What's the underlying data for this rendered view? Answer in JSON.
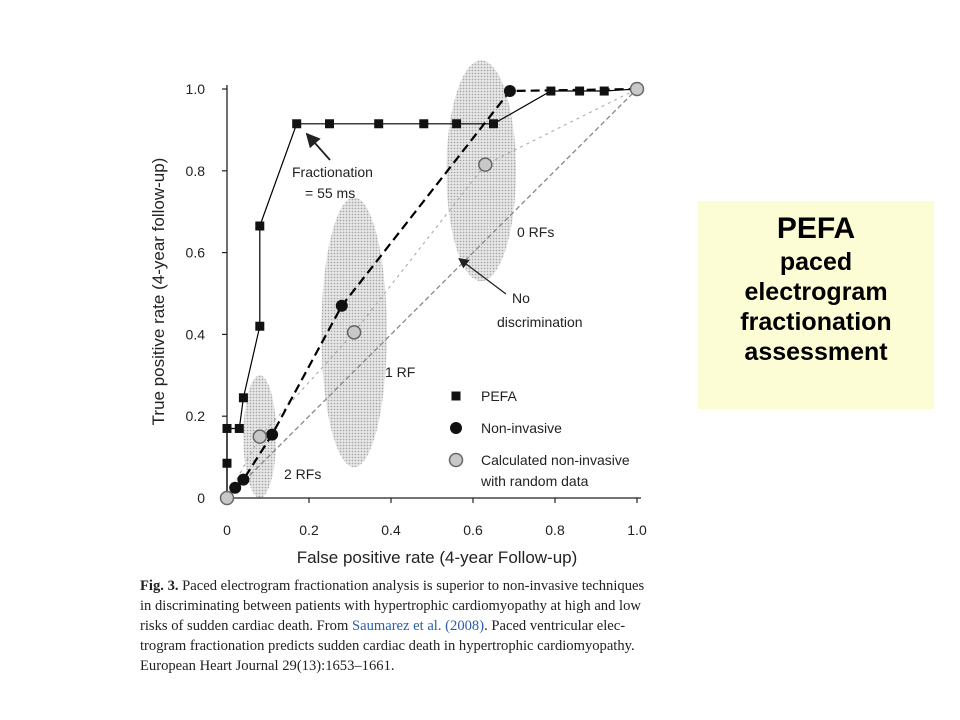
{
  "chart_data": {
    "type": "scatter",
    "xlabel": "False positive rate (4-year Follow-up)",
    "ylabel": "True positive rate (4-year follow-up)",
    "xlim": [
      0,
      1.0
    ],
    "ylim": [
      0,
      1.0
    ],
    "x_ticks": [
      "0",
      "0.2",
      "0.4",
      "0.6",
      "0.8",
      "1.0"
    ],
    "y_ticks": [
      "0",
      "0.2",
      "0.4",
      "0.6",
      "0.8",
      "1.0"
    ],
    "grid": false,
    "legend_position": "bottom-right",
    "series": [
      {
        "name": "PEFA",
        "marker": "square",
        "line": "solid",
        "color": "#000000",
        "points": [
          [
            0.0,
            0.0
          ],
          [
            0.0,
            0.085
          ],
          [
            0.0,
            0.17
          ],
          [
            0.03,
            0.17
          ],
          [
            0.04,
            0.245
          ],
          [
            0.08,
            0.42
          ],
          [
            0.08,
            0.665
          ],
          [
            0.17,
            0.915
          ],
          [
            0.25,
            0.915
          ],
          [
            0.37,
            0.915
          ],
          [
            0.48,
            0.915
          ],
          [
            0.56,
            0.915
          ],
          [
            0.65,
            0.915
          ],
          [
            0.79,
            0.995
          ],
          [
            0.86,
            0.995
          ],
          [
            0.92,
            0.995
          ],
          [
            1.0,
            1.0
          ]
        ]
      },
      {
        "name": "Non-invasive",
        "marker": "circle-filled",
        "line": "dashed",
        "color": "#000000",
        "points": [
          [
            0.0,
            0.0
          ],
          [
            0.02,
            0.025
          ],
          [
            0.04,
            0.045
          ],
          [
            0.11,
            0.155
          ],
          [
            0.28,
            0.47
          ],
          [
            0.69,
            0.995
          ],
          [
            1.0,
            1.0
          ]
        ]
      },
      {
        "name": "Calculated non-invasive with random data",
        "marker": "circle-gray",
        "line": "dotted",
        "color": "#aaaaaa",
        "points": [
          [
            0.0,
            0.0
          ],
          [
            0.08,
            0.15
          ],
          [
            0.31,
            0.405
          ],
          [
            0.63,
            0.815
          ],
          [
            1.0,
            1.0
          ]
        ]
      },
      {
        "name": "No discrimination",
        "marker": "none",
        "line": "dash-dot",
        "color": "#888888",
        "points": [
          [
            0.0,
            0.0
          ],
          [
            1.0,
            1.0
          ]
        ]
      }
    ],
    "shaded_regions": [
      {
        "label": "2 RFs",
        "cx": 0.08,
        "cy": 0.15,
        "rx": 0.04,
        "ry": 0.15
      },
      {
        "label": "1 RF",
        "cx": 0.31,
        "cy": 0.405,
        "rx": 0.08,
        "ry": 0.33
      },
      {
        "label": "0 RFs",
        "cx": 0.62,
        "cy": 0.8,
        "rx": 0.085,
        "ry": 0.27
      }
    ],
    "annotations": [
      {
        "id": "fractionation",
        "lines": [
          "Fractionation",
          "= 55 ms"
        ],
        "x": 0.17,
        "y": 0.915
      },
      {
        "id": "no_discrimination",
        "lines": [
          "No",
          "discrimination"
        ],
        "x": 0.6,
        "y": 0.6
      },
      {
        "id": "rf0",
        "lines": [
          "0 RFs"
        ]
      },
      {
        "id": "rf1",
        "lines": [
          "1 RF"
        ]
      },
      {
        "id": "rf2",
        "lines": [
          "2 RFs"
        ]
      }
    ],
    "legend": [
      {
        "marker": "square",
        "label_lines": [
          "PEFA"
        ]
      },
      {
        "marker": "circle-filled",
        "label_lines": [
          "Non-invasive"
        ]
      },
      {
        "marker": "circle-gray",
        "label_lines": [
          "Calculated non-invasive",
          "with random data"
        ]
      }
    ]
  },
  "callout": {
    "title": "PEFA",
    "lines": [
      "paced",
      "electrogram",
      "fractionation",
      "assessment"
    ],
    "background": "#fdfdd5"
  },
  "caption": {
    "fig_label": "Fig. 3.",
    "line1": "Paced electrogram fractionation analysis is superior to non-invasive techniques",
    "line2": "in discriminating between patients with hypertrophic cardiomyopathy at high and low",
    "line3_prefix": "risks of sudden cardiac death. From ",
    "line3_ref": "Saumarez et al. (2008)",
    "line3_suffix": ". Paced ventricular elec-",
    "line4": "trogram fractionation predicts sudden cardiac death in hypertrophic cardiomyopathy.",
    "line5": "European Heart Journal 29(13):1653–1661."
  }
}
